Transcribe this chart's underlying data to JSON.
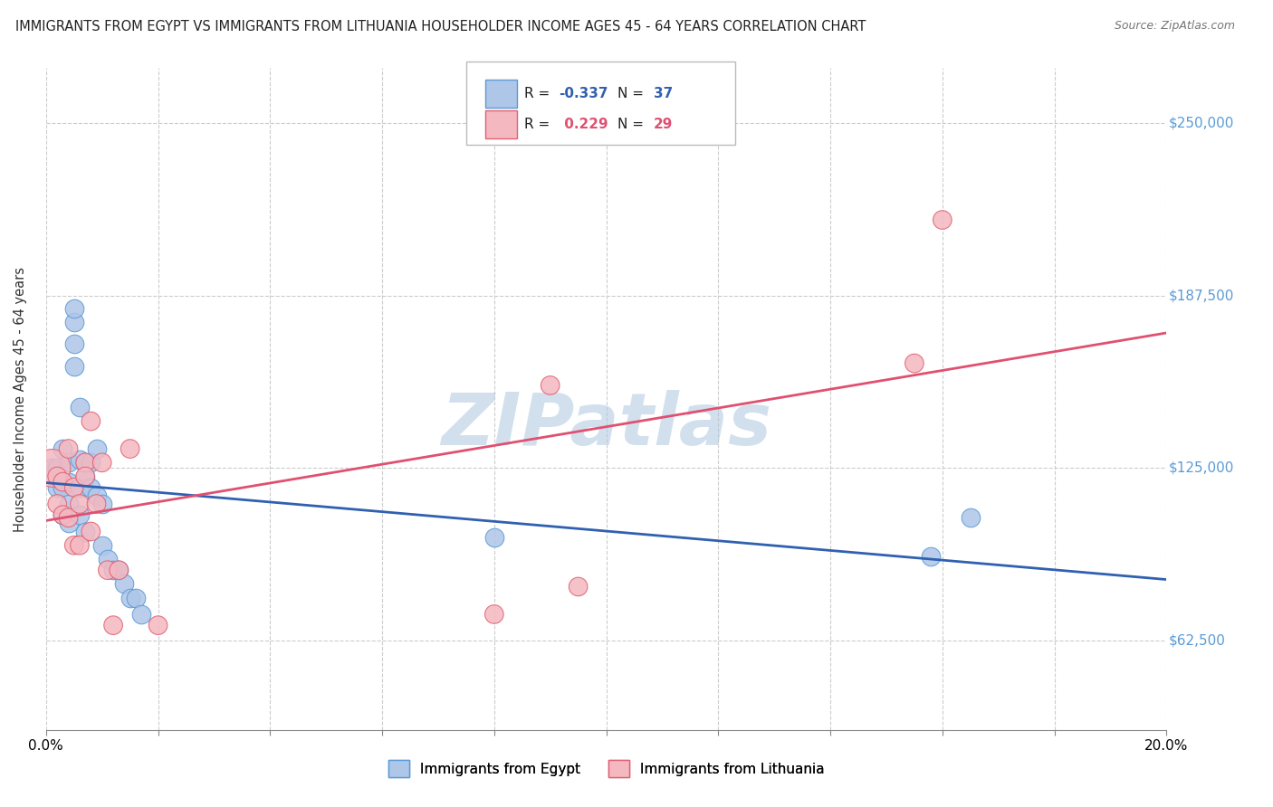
{
  "title": "IMMIGRANTS FROM EGYPT VS IMMIGRANTS FROM LITHUANIA HOUSEHOLDER INCOME AGES 45 - 64 YEARS CORRELATION CHART",
  "source": "Source: ZipAtlas.com",
  "ylabel": "Householder Income Ages 45 - 64 years",
  "xlim": [
    0.0,
    0.2
  ],
  "ylim": [
    30000,
    270000
  ],
  "yticks": [
    62500,
    125000,
    187500,
    250000
  ],
  "ytick_labels": [
    "$62,500",
    "$125,000",
    "$187,500",
    "$250,000"
  ],
  "background_color": "#ffffff",
  "grid_color": "#cccccc",
  "watermark": "ZIPatlas",
  "watermark_color": "#aec8e0",
  "egypt_color": "#aec6e8",
  "egypt_edge_color": "#5b9bd5",
  "lithuania_color": "#f4b8c1",
  "lithuania_edge_color": "#e06070",
  "egypt_line_color": "#3060b0",
  "lithuania_line_color": "#e05070",
  "egypt_x": [
    0.001,
    0.002,
    0.002,
    0.003,
    0.003,
    0.003,
    0.004,
    0.004,
    0.004,
    0.004,
    0.005,
    0.005,
    0.005,
    0.005,
    0.006,
    0.006,
    0.006,
    0.006,
    0.007,
    0.007,
    0.007,
    0.008,
    0.008,
    0.009,
    0.009,
    0.01,
    0.01,
    0.011,
    0.012,
    0.013,
    0.014,
    0.015,
    0.016,
    0.017,
    0.08,
    0.158,
    0.165
  ],
  "egypt_y": [
    125000,
    125000,
    118000,
    132000,
    118000,
    108000,
    127000,
    120000,
    112000,
    105000,
    178000,
    183000,
    170000,
    162000,
    147000,
    128000,
    118000,
    108000,
    122000,
    102000,
    127000,
    118000,
    127000,
    132000,
    115000,
    112000,
    97000,
    92000,
    88000,
    88000,
    83000,
    78000,
    78000,
    72000,
    100000,
    93000,
    107000
  ],
  "egypt_size": [
    30,
    30,
    30,
    30,
    30,
    30,
    30,
    30,
    30,
    30,
    30,
    30,
    30,
    30,
    30,
    30,
    30,
    30,
    30,
    30,
    30,
    30,
    30,
    30,
    30,
    30,
    30,
    30,
    30,
    30,
    30,
    30,
    30,
    30,
    30,
    30,
    30
  ],
  "lithuania_x": [
    0.001,
    0.002,
    0.002,
    0.003,
    0.003,
    0.004,
    0.004,
    0.005,
    0.005,
    0.006,
    0.006,
    0.007,
    0.007,
    0.008,
    0.008,
    0.009,
    0.01,
    0.011,
    0.012,
    0.013,
    0.015,
    0.02,
    0.08,
    0.09,
    0.095,
    0.155,
    0.16
  ],
  "lithuania_y": [
    125000,
    122000,
    112000,
    120000,
    108000,
    132000,
    107000,
    118000,
    97000,
    112000,
    97000,
    127000,
    122000,
    142000,
    102000,
    112000,
    127000,
    88000,
    68000,
    88000,
    132000,
    68000,
    72000,
    155000,
    82000,
    163000,
    215000
  ],
  "lithuania_size_large": [
    200,
    30,
    30,
    30,
    30,
    30,
    30,
    30,
    30,
    30,
    30,
    30,
    30,
    30,
    30,
    30,
    30,
    30,
    30,
    30,
    30,
    30,
    30,
    30,
    30,
    30,
    30
  ]
}
